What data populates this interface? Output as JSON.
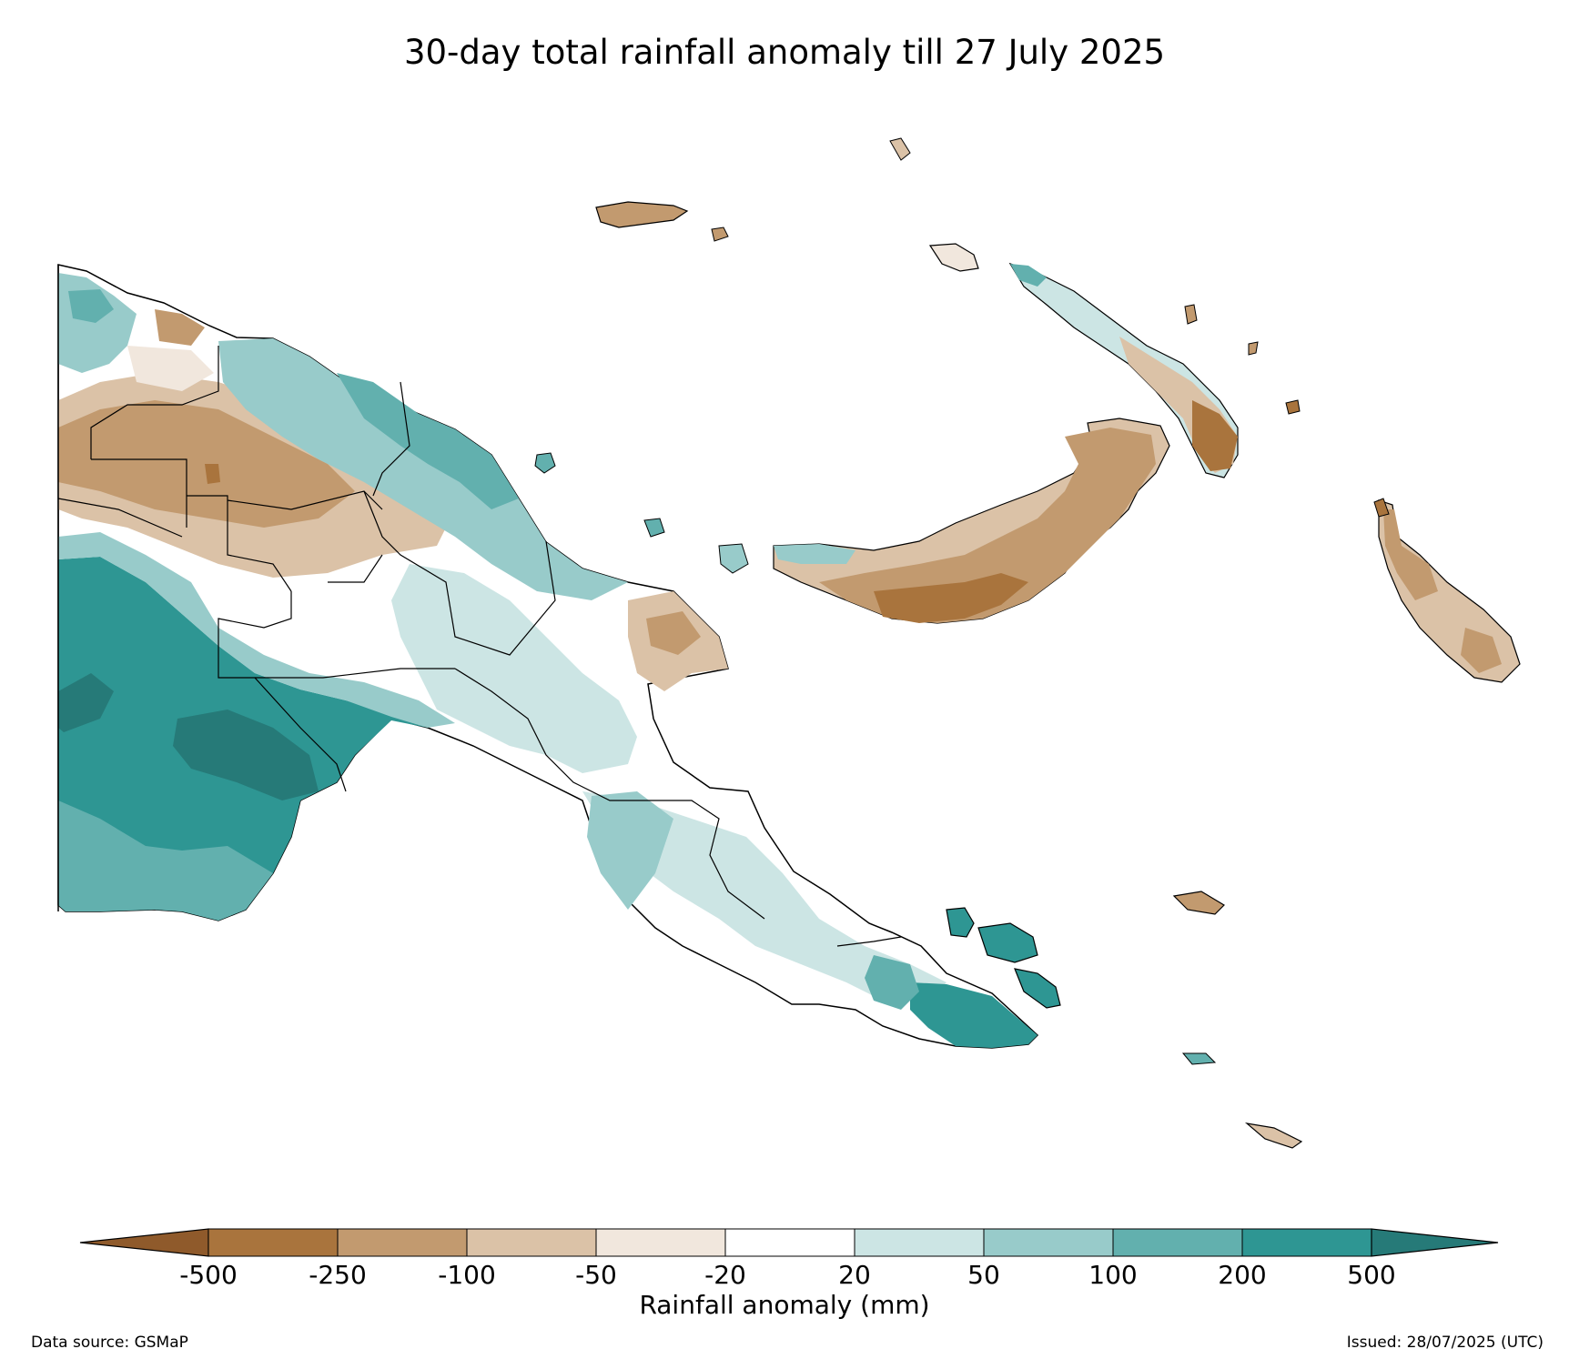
{
  "title": "30-day total rainfall anomaly till 27 July 2025",
  "colorbar": {
    "label": "Rainfall anomaly (mm)",
    "ticks": [
      "-500",
      "-250",
      "-100",
      "-50",
      "-20",
      "20",
      "50",
      "100",
      "200",
      "500"
    ],
    "colors": [
      "#8f5a2b",
      "#a9743d",
      "#c29a6f",
      "#dbc2a7",
      "#f1e7dd",
      "#ffffff",
      "#cce5e4",
      "#98cbca",
      "#62b0ae",
      "#2e9693",
      "#267a78"
    ]
  },
  "footer": {
    "source": "Data source: GSMaP",
    "issued": "Issued: 28/07/2025 (UTC)"
  }
}
